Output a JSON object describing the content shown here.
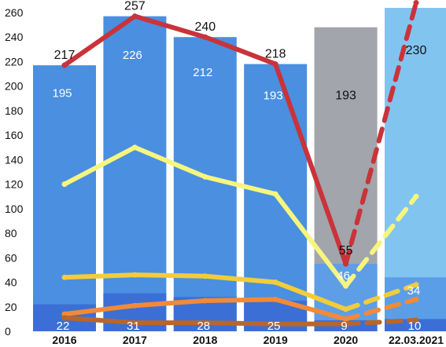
{
  "chart_data": {
    "type": "bar",
    "title": "",
    "xlabel": "",
    "ylabel": "",
    "categories": [
      "2016",
      "2017",
      "2018",
      "2019",
      "2020",
      "22.03.2021"
    ],
    "ylim": [
      0,
      260
    ],
    "yticks": [
      0,
      20,
      40,
      60,
      80,
      100,
      120,
      140,
      160,
      180,
      200,
      220,
      240,
      260
    ],
    "grid": false,
    "legend": "none",
    "bar_series": [
      {
        "values": [
          217,
          257,
          240,
          218,
          248,
          268
        ],
        "colors": [
          "#4a8fe0",
          "#4a8fe0",
          "#4a8fe0",
          "#4a8fe0",
          "#a2a5ab",
          "#82c4f0"
        ]
      },
      {
        "values": [
          null,
          null,
          null,
          null,
          55,
          44
        ],
        "colors": [
          "#4a8fe0",
          "#4a8fe0",
          "#4a8fe0",
          "#4a8fe0",
          "#5d9ee6",
          "#5b9ee8"
        ]
      },
      {
        "values": [
          22,
          31,
          28,
          25,
          9,
          10
        ],
        "colors": [
          "#3b6fd6",
          "#3b6fd6",
          "#3b6fd6",
          "#3b6fd6",
          "#3b6fd6",
          "#3b6fd6"
        ]
      }
    ],
    "line_series": [
      {
        "color": "#c9333a",
        "values": [
          217,
          257,
          240,
          218,
          55,
          268
        ],
        "dashed_last": true
      },
      {
        "color": "#f6f57d",
        "values": [
          120,
          150,
          126,
          112,
          37,
          110
        ],
        "dashed_last": true
      },
      {
        "color": "#f2cc3a",
        "values": [
          44,
          46,
          45,
          40,
          18,
          38
        ],
        "dashed_last": true
      },
      {
        "color": "#f28a37",
        "values": [
          14,
          21,
          25,
          26,
          10,
          26
        ],
        "dashed_last": true
      },
      {
        "color": "#b8662a",
        "values": [
          11,
          7,
          7,
          6,
          6,
          9
        ],
        "dashed_last": true
      }
    ],
    "top_labels": [
      {
        "category": "2016",
        "value": 217,
        "text": "217",
        "placement": "above"
      },
      {
        "category": "2017",
        "value": 257,
        "text": "257",
        "placement": "above"
      },
      {
        "category": "2018",
        "value": 240,
        "text": "240",
        "placement": "above"
      },
      {
        "category": "2019",
        "value": 218,
        "text": "218",
        "placement": "above"
      },
      {
        "category": "2020",
        "value": 193,
        "text": "193",
        "placement": "inside"
      },
      {
        "category": "22.03.2021",
        "value": 230,
        "text": "230",
        "placement": "inside"
      },
      {
        "category": "2020",
        "value": 55,
        "text": "55",
        "placement": "above"
      }
    ],
    "mid_labels": [
      {
        "category": "2016",
        "value": 195,
        "text": "195"
      },
      {
        "category": "2017",
        "value": 226,
        "text": "226"
      },
      {
        "category": "2018",
        "value": 212,
        "text": "212"
      },
      {
        "category": "2019",
        "value": 193,
        "text": "193"
      },
      {
        "category": "2020",
        "value": 46,
        "text": "46"
      },
      {
        "category": "22.03.2021",
        "value": 34,
        "text": "34"
      }
    ],
    "bottom_labels": [
      {
        "category": "2016",
        "value": 22,
        "text": "22"
      },
      {
        "category": "2017",
        "value": 31,
        "text": "31"
      },
      {
        "category": "2018",
        "value": 28,
        "text": "28"
      },
      {
        "category": "2019",
        "value": 25,
        "text": "25"
      },
      {
        "category": "2020",
        "value": 9,
        "text": "9"
      },
      {
        "category": "22.03.2021",
        "value": 10,
        "text": "10"
      }
    ]
  }
}
